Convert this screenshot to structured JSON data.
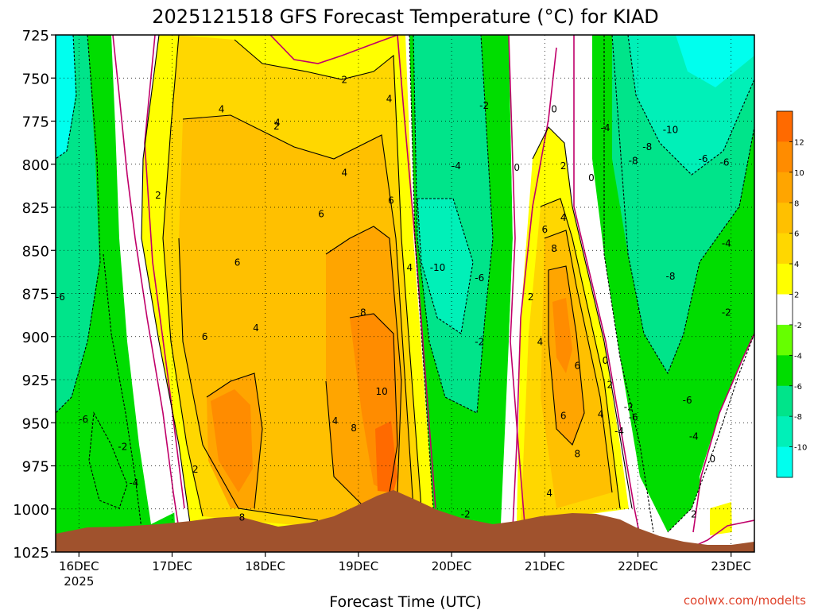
{
  "title": "2025121518 GFS Forecast Temperature (°C) for KIAD",
  "footer_credit": "coolwx.com/modelts",
  "chart_data": {
    "type": "heatmap",
    "title": "2025121518 GFS Forecast Temperature (°C) for KIAD",
    "xlabel": "Forecast Time (UTC)",
    "ylabel": "",
    "y_levels": [
      725,
      750,
      775,
      800,
      825,
      850,
      875,
      900,
      925,
      950,
      975,
      1000,
      1025
    ],
    "ylim": [
      725,
      1025
    ],
    "x_range_days": [
      0,
      7.5
    ],
    "x_ticks": [
      {
        "day": 0.25,
        "label": "16DEC",
        "sub": "2025"
      },
      {
        "day": 1.25,
        "label": "17DEC",
        "sub": ""
      },
      {
        "day": 2.25,
        "label": "18DEC",
        "sub": ""
      },
      {
        "day": 3.25,
        "label": "19DEC",
        "sub": ""
      },
      {
        "day": 4.25,
        "label": "20DEC",
        "sub": ""
      },
      {
        "day": 5.25,
        "label": "21DEC",
        "sub": ""
      },
      {
        "day": 6.25,
        "label": "22DEC",
        "sub": ""
      },
      {
        "day": 7.25,
        "label": "23DEC",
        "sub": ""
      }
    ],
    "grid": true,
    "colorbar": {
      "labels": [
        "12",
        "10",
        "8",
        "6",
        "4",
        "2",
        "-2",
        "-4",
        "-6",
        "-8",
        "-10"
      ],
      "colors": [
        "#ff6a00",
        "#ff8c00",
        "#ffa500",
        "#ffc000",
        "#ffd700",
        "#ffff00",
        "#ffffff",
        "#66ff00",
        "#00dd00",
        "#00e48a",
        "#00f0b8",
        "#00ffee"
      ]
    },
    "contour_labels": [
      {
        "t": 0.05,
        "p": 877,
        "v": "-6"
      },
      {
        "t": 0.3,
        "p": 948,
        "v": "-6"
      },
      {
        "t": 0.72,
        "p": 964,
        "v": "-2"
      },
      {
        "t": 0.84,
        "p": 985,
        "v": "-4"
      },
      {
        "t": 1.1,
        "p": 818,
        "v": "2"
      },
      {
        "t": 1.5,
        "p": 977,
        "v": "2"
      },
      {
        "t": 1.78,
        "p": 768,
        "v": "4"
      },
      {
        "t": 1.6,
        "p": 900,
        "v": "6"
      },
      {
        "t": 1.95,
        "p": 857,
        "v": "6"
      },
      {
        "t": 2.15,
        "p": 895,
        "v": "4"
      },
      {
        "t": 2.38,
        "p": 776,
        "v": "4"
      },
      {
        "t": 2.37,
        "p": 778,
        "v": "2"
      },
      {
        "t": 2.0,
        "p": 1005,
        "v": "8"
      },
      {
        "t": 3.1,
        "p": 751,
        "v": "2"
      },
      {
        "t": 3.1,
        "p": 805,
        "v": "4"
      },
      {
        "t": 2.85,
        "p": 829,
        "v": "6"
      },
      {
        "t": 3.0,
        "p": 949,
        "v": "4"
      },
      {
        "t": 3.3,
        "p": 886,
        "v": "8"
      },
      {
        "t": 3.2,
        "p": 953,
        "v": "8"
      },
      {
        "t": 3.5,
        "p": 932,
        "v": "10"
      },
      {
        "t": 3.6,
        "p": 821,
        "v": "6"
      },
      {
        "t": 3.58,
        "p": 762,
        "v": "4"
      },
      {
        "t": 3.8,
        "p": 860,
        "v": "4"
      },
      {
        "t": 4.1,
        "p": 860,
        "v": "-10"
      },
      {
        "t": 4.3,
        "p": 801,
        "v": "-4"
      },
      {
        "t": 4.6,
        "p": 766,
        "v": "-2"
      },
      {
        "t": 4.55,
        "p": 866,
        "v": "-6"
      },
      {
        "t": 4.55,
        "p": 903,
        "v": "-2"
      },
      {
        "t": 4.4,
        "p": 1003,
        "v": "-2"
      },
      {
        "t": 4.95,
        "p": 802,
        "v": "0"
      },
      {
        "t": 5.1,
        "p": 877,
        "v": "2"
      },
      {
        "t": 5.35,
        "p": 768,
        "v": "0"
      },
      {
        "t": 5.45,
        "p": 801,
        "v": "2"
      },
      {
        "t": 5.25,
        "p": 838,
        "v": "6"
      },
      {
        "t": 5.45,
        "p": 831,
        "v": "4"
      },
      {
        "t": 5.35,
        "p": 849,
        "v": "8"
      },
      {
        "t": 5.2,
        "p": 903,
        "v": "4"
      },
      {
        "t": 5.6,
        "p": 917,
        "v": "6"
      },
      {
        "t": 5.45,
        "p": 946,
        "v": "6"
      },
      {
        "t": 5.6,
        "p": 968,
        "v": "8"
      },
      {
        "t": 5.3,
        "p": 991,
        "v": "4"
      },
      {
        "t": 5.75,
        "p": 808,
        "v": "0"
      },
      {
        "t": 5.9,
        "p": 779,
        "v": "-4"
      },
      {
        "t": 5.9,
        "p": 914,
        "v": "0"
      },
      {
        "t": 6.2,
        "p": 798,
        "v": "-8"
      },
      {
        "t": 6.35,
        "p": 790,
        "v": "-8"
      },
      {
        "t": 6.6,
        "p": 780,
        "v": "-10"
      },
      {
        "t": 6.95,
        "p": 797,
        "v": "-6"
      },
      {
        "t": 7.18,
        "p": 799,
        "v": "-6"
      },
      {
        "t": 7.2,
        "p": 846,
        "v": "-4"
      },
      {
        "t": 6.6,
        "p": 865,
        "v": "-8"
      },
      {
        "t": 7.2,
        "p": 886,
        "v": "-2"
      },
      {
        "t": 6.78,
        "p": 937,
        "v": "-6"
      },
      {
        "t": 6.15,
        "p": 941,
        "v": "-2"
      },
      {
        "t": 6.2,
        "p": 947,
        "v": "-6"
      },
      {
        "t": 5.95,
        "p": 928,
        "v": "2"
      },
      {
        "t": 5.85,
        "p": 945,
        "v": "4"
      },
      {
        "t": 6.05,
        "p": 955,
        "v": "-4"
      },
      {
        "t": 6.85,
        "p": 958,
        "v": "-4"
      },
      {
        "t": 7.05,
        "p": 971,
        "v": "0"
      },
      {
        "t": 6.85,
        "p": 1003,
        "v": "2"
      }
    ]
  }
}
